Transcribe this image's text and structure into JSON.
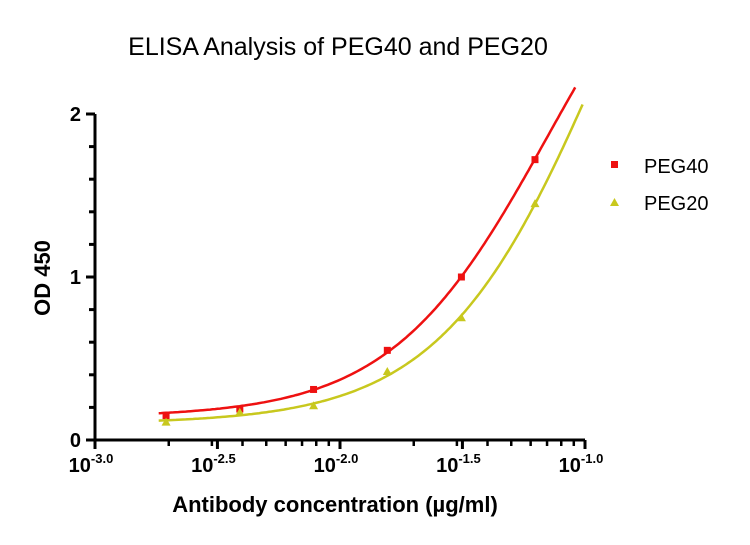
{
  "chart_data": {
    "type": "scatter",
    "title": "ELISA Analysis of PEG40 and PEG20",
    "xlabel": "Antibody concentration (µg/ml)",
    "ylabel": "OD 450",
    "x_scale": "log",
    "xlim": [
      0.001,
      0.1
    ],
    "ylim": [
      0,
      2
    ],
    "x_ticks": [
      {
        "base": "10",
        "exp": "-3.0",
        "value": 0.001
      },
      {
        "base": "10",
        "exp": "-2.5",
        "value": 0.00316
      },
      {
        "base": "10",
        "exp": "-2.0",
        "value": 0.01
      },
      {
        "base": "10",
        "exp": "-1.5",
        "value": 0.0316
      },
      {
        "base": "10",
        "exp": "-1.0",
        "value": 0.1
      }
    ],
    "y_ticks": [
      {
        "label": "0",
        "value": 0
      },
      {
        "label": "1",
        "value": 1
      },
      {
        "label": "2",
        "value": 2
      }
    ],
    "legend_position": "right",
    "grid": false,
    "series": [
      {
        "name": "PEG40",
        "color": "#ee1111",
        "marker": "square",
        "x": [
          0.00195,
          0.0039,
          0.0078,
          0.0156,
          0.0313,
          0.0625
        ],
        "y": [
          0.15,
          0.19,
          0.31,
          0.55,
          1.0,
          1.72
        ],
        "fit": "sigmoidal curve"
      },
      {
        "name": "PEG20",
        "color": "#c8c81e",
        "marker": "triangle",
        "x": [
          0.00195,
          0.0039,
          0.0078,
          0.0156,
          0.0313,
          0.0625
        ],
        "y": [
          0.11,
          0.17,
          0.21,
          0.42,
          0.75,
          1.45
        ],
        "fit": "sigmoidal curve"
      }
    ]
  }
}
